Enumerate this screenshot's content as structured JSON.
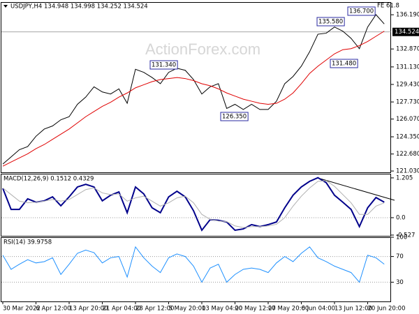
{
  "chart_data": [
    {
      "type": "line",
      "title": "USDJPY,H4 134.948 134.998 134.252 134.524",
      "watermark": "ActionForex.com",
      "categories": [
        "30 Mar 2022",
        null,
        null,
        null,
        "6 Apr 12:00",
        null,
        null,
        null,
        "13 Apr 20:00",
        null,
        null,
        null,
        "21 Apr 04:00",
        null,
        null,
        null,
        "28 Apr 12:00",
        null,
        null,
        null,
        "5 May 20:00",
        null,
        null,
        null,
        "13 May 04:00",
        null,
        null,
        null,
        "20 May 12:00",
        null,
        null,
        null,
        "27 May 20:00",
        null,
        null,
        null,
        "6 Jun 04:00",
        null,
        null,
        null,
        "13 Jun 12:00",
        null,
        null,
        null,
        "20 Jun 20:00",
        null,
        null
      ],
      "series": [
        {
          "color": "#000000",
          "values": [
            121.7,
            122.4,
            123.1,
            123.4,
            124.4,
            125.1,
            125.4,
            126.0,
            126.3,
            127.5,
            128.2,
            129.2,
            128.7,
            128.5,
            129.0,
            127.6,
            130.9,
            130.6,
            130.1,
            129.5,
            130.6,
            131.0,
            130.8,
            129.9,
            128.5,
            129.2,
            129.5,
            127.1,
            127.5,
            127.0,
            127.5,
            127.0,
            127.0,
            127.8,
            129.5,
            130.2,
            131.2,
            132.6,
            134.3,
            134.4,
            135.0,
            134.6,
            133.9,
            132.9,
            135.0,
            136.2,
            135.3
          ]
        },
        {
          "color": "#e00000",
          "values": [
            121.5,
            121.9,
            122.3,
            122.7,
            123.2,
            123.6,
            124.1,
            124.6,
            125.1,
            125.7,
            126.3,
            126.8,
            127.3,
            127.7,
            128.2,
            128.6,
            129.1,
            129.4,
            129.7,
            129.9,
            130.0,
            130.1,
            130.0,
            129.8,
            129.5,
            129.3,
            129.0,
            128.6,
            128.3,
            128.0,
            127.8,
            127.6,
            127.5,
            127.6,
            128.0,
            128.6,
            129.5,
            130.5,
            131.2,
            131.8,
            132.4,
            132.8,
            132.9,
            133.2,
            133.6,
            134.1,
            134.6
          ]
        }
      ],
      "ylim": [
        120.9,
        137.35
      ],
      "yticks": [
        {
          "value": 136.19,
          "label": "136.190"
        },
        {
          "value": 132.87,
          "label": "132.870"
        },
        {
          "value": 131.13,
          "label": "131.130"
        },
        {
          "value": 129.43,
          "label": "129.430"
        },
        {
          "value": 127.73,
          "label": "127.730"
        },
        {
          "value": 126.07,
          "label": "126.070"
        },
        {
          "value": 124.35,
          "label": "124.350"
        },
        {
          "value": 122.68,
          "label": "122.680"
        },
        {
          "value": 121.03,
          "label": "121.030"
        }
      ],
      "last_price": {
        "value": 134.524,
        "label": "134.524"
      },
      "annotations": [
        "131.340",
        "126.350",
        "135.580",
        "136.700",
        "131.480",
        "FE 61.8"
      ]
    },
    {
      "type": "line",
      "title": "MACD(12,26,9) 0.1512 0.4329",
      "series": [
        {
          "color": "#00008b",
          "values": [
            0.89,
            0.25,
            0.25,
            0.57,
            0.47,
            0.51,
            0.63,
            0.36,
            0.63,
            0.93,
            1.01,
            0.93,
            0.51,
            0.68,
            0.78,
            0.15,
            0.93,
            0.72,
            0.3,
            0.15,
            0.63,
            0.8,
            0.63,
            0.21,
            -0.38,
            -0.06,
            -0.08,
            -0.13,
            -0.38,
            -0.34,
            -0.21,
            -0.27,
            -0.21,
            -0.13,
            0.3,
            0.68,
            0.93,
            1.1,
            1.21,
            1.06,
            0.68,
            0.47,
            0.25,
            -0.27,
            0.3,
            0.61,
            0.47
          ]
        },
        {
          "color": "#b0b0b0",
          "values": [
            0.9,
            0.7,
            0.5,
            0.45,
            0.47,
            0.5,
            0.55,
            0.5,
            0.55,
            0.7,
            0.85,
            0.9,
            0.75,
            0.7,
            0.72,
            0.5,
            0.6,
            0.65,
            0.5,
            0.35,
            0.45,
            0.6,
            0.65,
            0.45,
            0.1,
            -0.05,
            -0.1,
            -0.12,
            -0.25,
            -0.3,
            -0.27,
            -0.27,
            -0.25,
            -0.2,
            0.0,
            0.35,
            0.65,
            0.9,
            1.1,
            1.12,
            0.95,
            0.7,
            0.45,
            0.1,
            0.1,
            0.35,
            0.45
          ]
        }
      ],
      "ylim": [
        -0.55,
        1.33
      ],
      "yticks": [
        {
          "value": 1.205,
          "label": "1.205"
        },
        {
          "value": 0,
          "label": "0.0"
        },
        {
          "value": -0.527,
          "label": "-0.527"
        }
      ],
      "levels": [
        0
      ]
    },
    {
      "type": "line",
      "title": "RSI(14) 39.9758",
      "series": [
        {
          "color": "#1e90ff",
          "values": [
            72,
            50,
            58,
            65,
            60,
            62,
            68,
            42,
            58,
            75,
            80,
            76,
            60,
            68,
            70,
            38,
            85,
            68,
            55,
            45,
            68,
            74,
            70,
            55,
            30,
            52,
            58,
            30,
            42,
            50,
            52,
            50,
            45,
            60,
            70,
            62,
            75,
            85,
            68,
            62,
            55,
            50,
            45,
            30,
            72,
            68,
            58
          ]
        }
      ],
      "ylim": [
        0,
        100
      ],
      "yticks": [
        100,
        70,
        30
      ],
      "levels": [
        70,
        30
      ]
    }
  ]
}
